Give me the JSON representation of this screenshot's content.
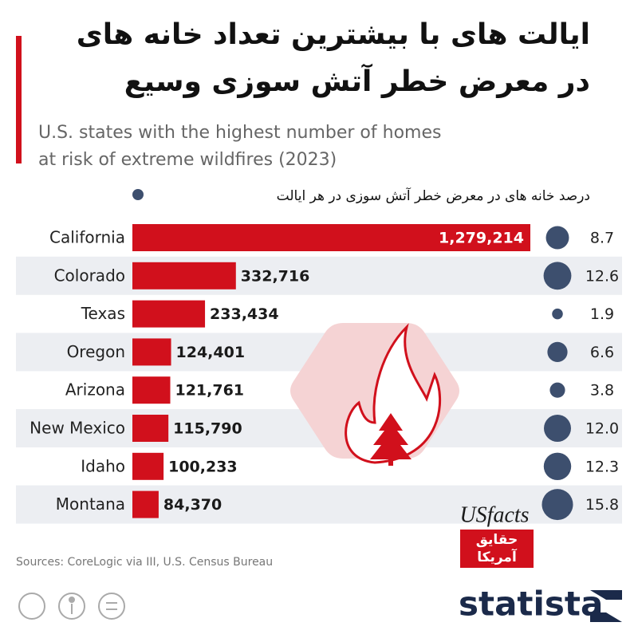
{
  "chart_data": {
    "type": "bar",
    "title": [
      "ایالت های با بیشترین تعداد خانه های",
      "در معرض خطر آتش سوزی وسیع"
    ],
    "subtitle": [
      "U.S. states with the highest number of homes",
      "at risk of extreme wildfires (2023)"
    ],
    "categories": [
      "California",
      "Colorado",
      "Texas",
      "Oregon",
      "Arizona",
      "New Mexico",
      "Idaho",
      "Montana"
    ],
    "values": [
      1279214,
      332716,
      233434,
      124401,
      121761,
      115790,
      100233,
      84370
    ],
    "value_labels": [
      "1,279,214",
      "332,716",
      "233,434",
      "124,401",
      "121,761",
      "115,790",
      "100,233",
      "84,370"
    ],
    "color": "#d1101c",
    "bubbles": {
      "name": "درصد خانه های در معرض خطر آتش سوزی در هر ایالت",
      "color": "#3d4f6e",
      "values": [
        8.7,
        12.6,
        1.9,
        6.6,
        3.8,
        12.0,
        12.3,
        15.8
      ],
      "value_labels": [
        "8.7",
        "12.6",
        "1.9",
        "6.6",
        "3.8",
        "12.0",
        "12.3",
        "15.8"
      ]
    }
  },
  "source": "Sources: CoreLogic via III, U.S. Census Bureau",
  "logos": {
    "usfacts": "USfacts",
    "usfacts_fa": [
      "حقایق",
      "آمریکا"
    ],
    "statista": "statista"
  }
}
